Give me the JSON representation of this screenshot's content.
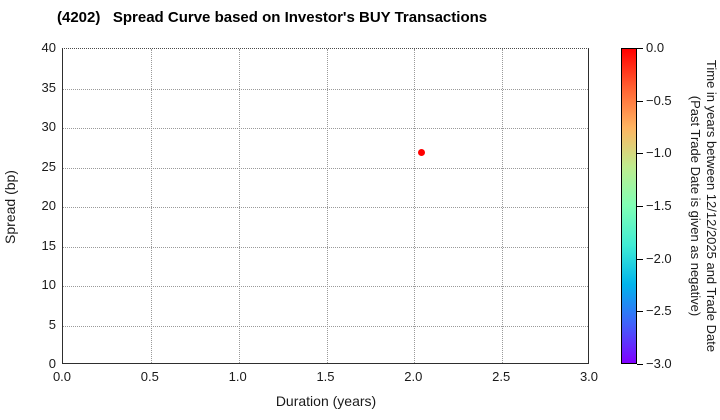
{
  "title": "(4202)   Spread Curve based on Investor's BUY Transactions",
  "chart_data": {
    "type": "scatter",
    "title": "(4202)   Spread Curve based on Investor's BUY Transactions",
    "xlabel": "Duration (years)",
    "ylabel": "Spread (bp)",
    "xlim": [
      0.0,
      3.0
    ],
    "ylim": [
      0,
      40
    ],
    "x_ticks": [
      0.0,
      0.5,
      1.0,
      1.5,
      2.0,
      2.5,
      3.0
    ],
    "y_ticks": [
      0,
      5,
      10,
      15,
      20,
      25,
      30,
      35,
      40
    ],
    "grid": "dotted",
    "points": [
      {
        "duration": 2.04,
        "spread": 26.9,
        "time_value": 0.0,
        "color": "#ff0000"
      }
    ],
    "colorbar": {
      "label_line1": "Time in years between 12/12/2025 and Trade Date",
      "label_line2": "(Past Trade Date is given as negative)",
      "range_top": 0.0,
      "range_bottom": -3.0,
      "ticks": [
        0.0,
        -0.5,
        -1.0,
        -1.5,
        -2.0,
        -2.5,
        -3.0
      ],
      "colormap": "rainbow",
      "gradient_top_to_bottom": [
        "#ff0000",
        "#ff6232",
        "#ffb461",
        "#bfec8e",
        "#80ffb5",
        "#40ecd4",
        "#00b4ec",
        "#4062fa",
        "#8000ff"
      ]
    }
  }
}
